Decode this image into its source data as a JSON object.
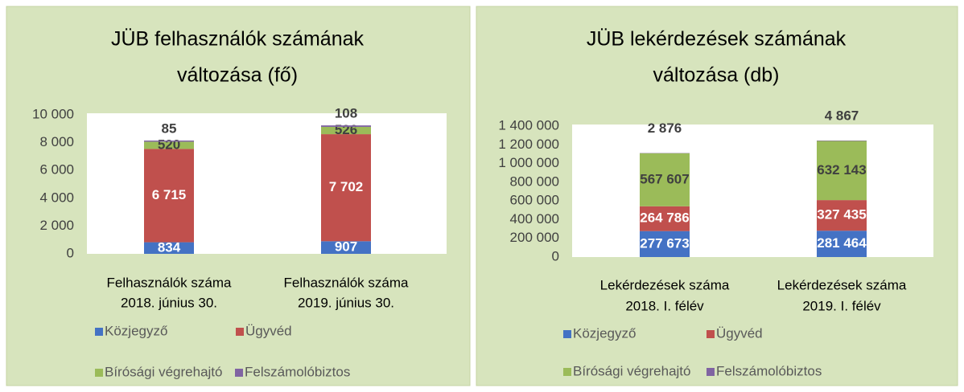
{
  "chart_data": [
    {
      "type": "bar",
      "stacked": true,
      "grid": false,
      "legend": "bottom",
      "title": [
        "JÜB felhasználók számának",
        "változása (fő)"
      ],
      "categories": [
        [
          "Felhasználók száma",
          "2018. június 30."
        ],
        [
          "Felhasználók száma",
          "2019. június 30."
        ]
      ],
      "series": [
        {
          "name": "Közjegyző",
          "color": "#4472c4",
          "values": [
            834,
            907
          ]
        },
        {
          "name": "Ügyvéd",
          "color": "#c0504d",
          "values": [
            6715,
            7702
          ],
          "value_labels": [
            "6 715",
            "7 702"
          ]
        },
        {
          "name": "Bírósági végrehajtó",
          "color": "#9bbb59",
          "values": [
            520,
            526
          ]
        },
        {
          "name": "Felszámolóbiztos",
          "color": "#8064a2",
          "values": [
            85,
            108
          ]
        }
      ],
      "ylim": [
        0,
        10000
      ],
      "yticks": [
        0,
        {
          "value": 2000,
          "label": "2 000"
        },
        {
          "value": 4000,
          "label": "4 000"
        },
        {
          "value": 6000,
          "label": "6 000"
        },
        {
          "value": 8000,
          "label": "8 000"
        },
        {
          "value": 10000,
          "label": "10 000"
        }
      ]
    },
    {
      "type": "bar",
      "stacked": true,
      "grid": false,
      "legend": "bottom",
      "title": [
        "JÜB lekérdezések számának",
        "változása (db)"
      ],
      "categories": [
        [
          "Lekérdezések száma",
          "2018. I. félév"
        ],
        [
          "Lekérdezések száma",
          "2019. I. félév"
        ]
      ],
      "series": [
        {
          "name": "Közjegyző",
          "color": "#4472c4",
          "values": [
            277673,
            281464
          ],
          "value_labels": [
            "277 673",
            "281 464"
          ]
        },
        {
          "name": "Ügyvéd",
          "color": "#c0504d",
          "values": [
            264786,
            327435
          ],
          "value_labels": [
            "264 786",
            "327 435"
          ]
        },
        {
          "name": "Bírósági végrehajtó",
          "color": "#9bbb59",
          "values": [
            567607,
            632143
          ],
          "value_labels": [
            "567 607",
            "632 143"
          ]
        },
        {
          "name": "Felszámolóbiztos",
          "color": "#8064a2",
          "values": [
            2876,
            4867
          ],
          "value_labels": [
            "2 876",
            "4 867"
          ]
        }
      ],
      "ylim": [
        0,
        1400000
      ],
      "yticks": [
        0,
        {
          "value": 200000,
          "label": "200 000"
        },
        {
          "value": 400000,
          "label": "400 000"
        },
        {
          "value": 600000,
          "label": "600 000"
        },
        {
          "value": 800000,
          "label": "800 000"
        },
        {
          "value": 1000000,
          "label": "1 000 000"
        },
        {
          "value": 1200000,
          "label": "1 200 000"
        },
        {
          "value": 1400000,
          "label": "1 400 000"
        }
      ]
    }
  ]
}
